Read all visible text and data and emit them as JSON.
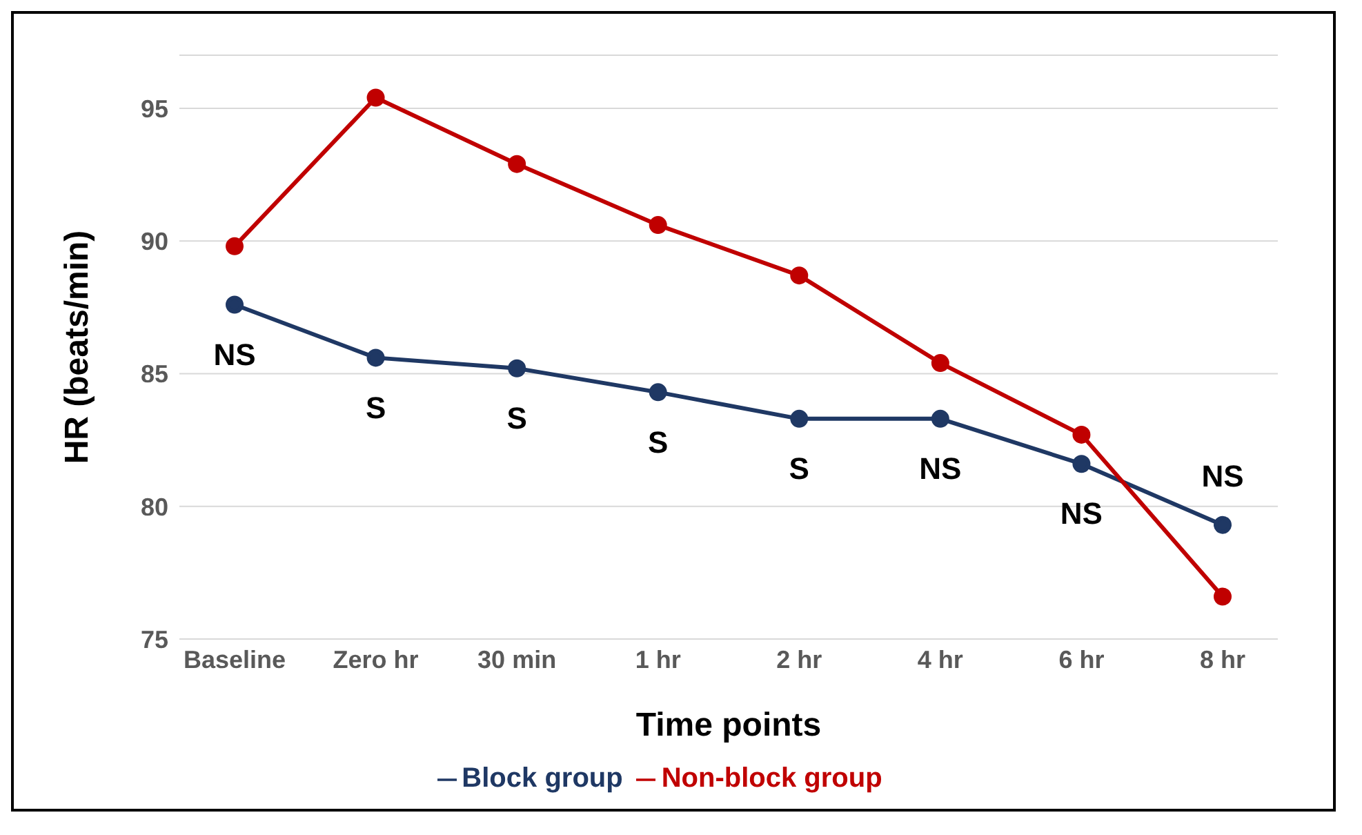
{
  "chart_data": {
    "type": "line",
    "xlabel": "Time points",
    "ylabel": "HR (beats/min)",
    "categories": [
      "Baseline",
      "Zero hr",
      "30 min",
      "1 hr",
      "2 hr",
      "4 hr",
      "6 hr",
      "8 hr"
    ],
    "series": [
      {
        "name": "Block group",
        "color": "#1f3864",
        "values": [
          87.6,
          85.6,
          85.2,
          84.3,
          83.3,
          83.3,
          81.6,
          79.3
        ]
      },
      {
        "name": "Non-block group",
        "color": "#c00000",
        "values": [
          89.8,
          95.4,
          92.9,
          90.6,
          88.7,
          85.4,
          82.7,
          76.6
        ]
      }
    ],
    "ylim": [
      75,
      97
    ],
    "yticks": [
      75,
      80,
      85,
      90,
      95
    ],
    "grid": "y",
    "legend": "bottom",
    "marker": "circle",
    "line_style": "solid",
    "annotations": [
      "NS",
      "S",
      "S",
      "S",
      "S",
      "NS",
      "NS",
      "NS"
    ]
  }
}
